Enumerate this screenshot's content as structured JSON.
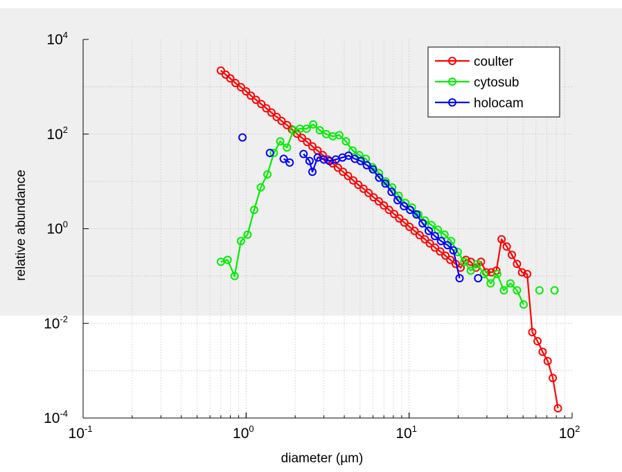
{
  "chart_data": {
    "type": "scatter",
    "title": "",
    "xlabel": "diameter (µm)",
    "ylabel": "relative abundance",
    "xscale": "log",
    "yscale": "log",
    "xlim": [
      0.1,
      100
    ],
    "ylim": [
      0.0001,
      10000
    ],
    "x_ticks": [
      {
        "value": 0.1,
        "base": "10",
        "exp": "-1"
      },
      {
        "value": 1,
        "base": "10",
        "exp": "0"
      },
      {
        "value": 10,
        "base": "10",
        "exp": "1"
      },
      {
        "value": 100,
        "base": "10",
        "exp": "2"
      }
    ],
    "y_ticks": [
      {
        "value": 0.0001,
        "base": "10",
        "exp": "-4"
      },
      {
        "value": 0.01,
        "base": "10",
        "exp": "-2"
      },
      {
        "value": 1,
        "base": "10",
        "exp": "0"
      },
      {
        "value": 100,
        "base": "10",
        "exp": "2"
      },
      {
        "value": 10000,
        "base": "10",
        "exp": "4"
      }
    ],
    "grid": true,
    "legend_position": "top-right",
    "series": [
      {
        "name": "coulter",
        "color": "#ff0000",
        "marker": "circle",
        "line": true,
        "points": [
          [
            0.7,
            2200
          ],
          [
            0.75,
            1800
          ],
          [
            0.8,
            1500
          ],
          [
            0.86,
            1200
          ],
          [
            0.93,
            980
          ],
          [
            1.0,
            800
          ],
          [
            1.07,
            650
          ],
          [
            1.15,
            530
          ],
          [
            1.24,
            430
          ],
          [
            1.33,
            350
          ],
          [
            1.43,
            285
          ],
          [
            1.54,
            230
          ],
          [
            1.65,
            190
          ],
          [
            1.78,
            155
          ],
          [
            1.91,
            125
          ],
          [
            2.05,
            102
          ],
          [
            2.2,
            83
          ],
          [
            2.37,
            68
          ],
          [
            2.55,
            55
          ],
          [
            2.74,
            45
          ],
          [
            2.95,
            36
          ],
          [
            3.17,
            29
          ],
          [
            3.4,
            24
          ],
          [
            3.66,
            19.5
          ],
          [
            3.93,
            16
          ],
          [
            4.22,
            13
          ],
          [
            4.54,
            10.5
          ],
          [
            4.88,
            8.5
          ],
          [
            5.25,
            7
          ],
          [
            5.64,
            5.7
          ],
          [
            6.06,
            4.6
          ],
          [
            6.52,
            3.8
          ],
          [
            7.0,
            3.1
          ],
          [
            7.53,
            2.5
          ],
          [
            8.1,
            2.05
          ],
          [
            8.7,
            1.65
          ],
          [
            9.35,
            1.35
          ],
          [
            10.05,
            1.1
          ],
          [
            10.8,
            0.9
          ],
          [
            11.6,
            0.73
          ],
          [
            12.5,
            0.6
          ],
          [
            13.4,
            0.49
          ],
          [
            14.4,
            0.4
          ],
          [
            15.5,
            0.33
          ],
          [
            16.7,
            0.27
          ],
          [
            17.9,
            0.22
          ],
          [
            19.3,
            0.18
          ],
          [
            20.7,
            0.15
          ],
          [
            22.3,
            0.22
          ],
          [
            23.9,
            0.2
          ],
          [
            25.7,
            0.15
          ],
          [
            27.6,
            0.2
          ],
          [
            29.7,
            0.12
          ],
          [
            31.9,
            0.12
          ],
          [
            34.3,
            0.13
          ],
          [
            36.9,
            0.6
          ],
          [
            39.7,
            0.42
          ],
          [
            42.7,
            0.28
          ],
          [
            45.9,
            0.18
          ],
          [
            49.3,
            0.12
          ],
          [
            53,
            0.11
          ],
          [
            57,
            0.0065
          ],
          [
            61.3,
            0.0042
          ],
          [
            65.9,
            0.0025
          ],
          [
            70.8,
            0.0016
          ],
          [
            76.1,
            0.0007
          ],
          [
            81.8,
            0.00016
          ]
        ]
      },
      {
        "name": "cytosub",
        "color": "#00ee00",
        "marker": "circle",
        "line": true,
        "segments": [
          [
            [
              0.7,
              0.2
            ],
            [
              0.77,
              0.22
            ],
            [
              0.85,
              0.1
            ],
            [
              0.93,
              0.55
            ],
            [
              1.02,
              0.75
            ],
            [
              1.12,
              2.5
            ],
            [
              1.23,
              7.5
            ],
            [
              1.35,
              14
            ],
            [
              1.48,
              40
            ],
            [
              1.62,
              70
            ],
            [
              1.78,
              52
            ],
            [
              1.95,
              120
            ],
            [
              2.14,
              130
            ],
            [
              2.35,
              130
            ],
            [
              2.58,
              160
            ],
            [
              2.83,
              120
            ],
            [
              3.1,
              100
            ],
            [
              3.4,
              90
            ],
            [
              3.73,
              95
            ],
            [
              4.1,
              70
            ],
            [
              4.5,
              45
            ],
            [
              4.94,
              36
            ],
            [
              5.42,
              30
            ],
            [
              5.95,
              20
            ],
            [
              6.53,
              15
            ],
            [
              7.17,
              10
            ],
            [
              7.87,
              7.5
            ],
            [
              8.64,
              5
            ],
            [
              9.48,
              3.5
            ],
            [
              10.4,
              2.8
            ],
            [
              11.4,
              2
            ],
            [
              12.5,
              1.5
            ],
            [
              13.7,
              1.2
            ],
            [
              15.0,
              0.95
            ],
            [
              16.5,
              0.75
            ],
            [
              18.1,
              0.55
            ],
            [
              19.9,
              0.32
            ],
            [
              21.8,
              0.2
            ],
            [
              23.9,
              0.13
            ],
            [
              26.2,
              0.18
            ],
            [
              28.8,
              0.11
            ],
            [
              31.6,
              0.07
            ],
            [
              34.7,
              0.11
            ],
            [
              38.1,
              0.05
            ],
            [
              41.8,
              0.07
            ],
            [
              45.9,
              0.05
            ],
            [
              50.4,
              0.025
            ]
          ],
          [
            [
              63,
              0.05
            ]
          ],
          [
            [
              78,
              0.05
            ]
          ]
        ]
      },
      {
        "name": "holocam",
        "color": "#0000ff",
        "marker": "circle",
        "line": true,
        "segments": [
          [
            [
              0.95,
              85
            ]
          ],
          [
            [
              1.4,
              40
            ]
          ],
          [
            [
              1.7,
              30
            ],
            [
              1.85,
              25
            ]
          ],
          [
            [
              2.25,
              38
            ],
            [
              2.45,
              27
            ],
            [
              2.55,
              16
            ],
            [
              2.75,
              32
            ],
            [
              3.0,
              29
            ],
            [
              3.25,
              27
            ],
            [
              3.55,
              29
            ],
            [
              3.9,
              32
            ],
            [
              4.25,
              35
            ],
            [
              4.65,
              30
            ],
            [
              5.05,
              27
            ],
            [
              5.5,
              22
            ],
            [
              6.0,
              18
            ],
            [
              6.55,
              12
            ],
            [
              7.15,
              9
            ],
            [
              7.8,
              6
            ],
            [
              8.5,
              4
            ],
            [
              9.3,
              3
            ],
            [
              10.15,
              2.5
            ],
            [
              11.1,
              2
            ],
            [
              12.1,
              1.3
            ],
            [
              13.2,
              0.9
            ],
            [
              14.4,
              0.7
            ],
            [
              15.7,
              0.55
            ],
            [
              17.2,
              0.45
            ],
            [
              18.7,
              0.35
            ],
            [
              20.4,
              0.09
            ]
          ],
          [
            [
              26.5,
              0.09
            ]
          ]
        ]
      }
    ]
  }
}
